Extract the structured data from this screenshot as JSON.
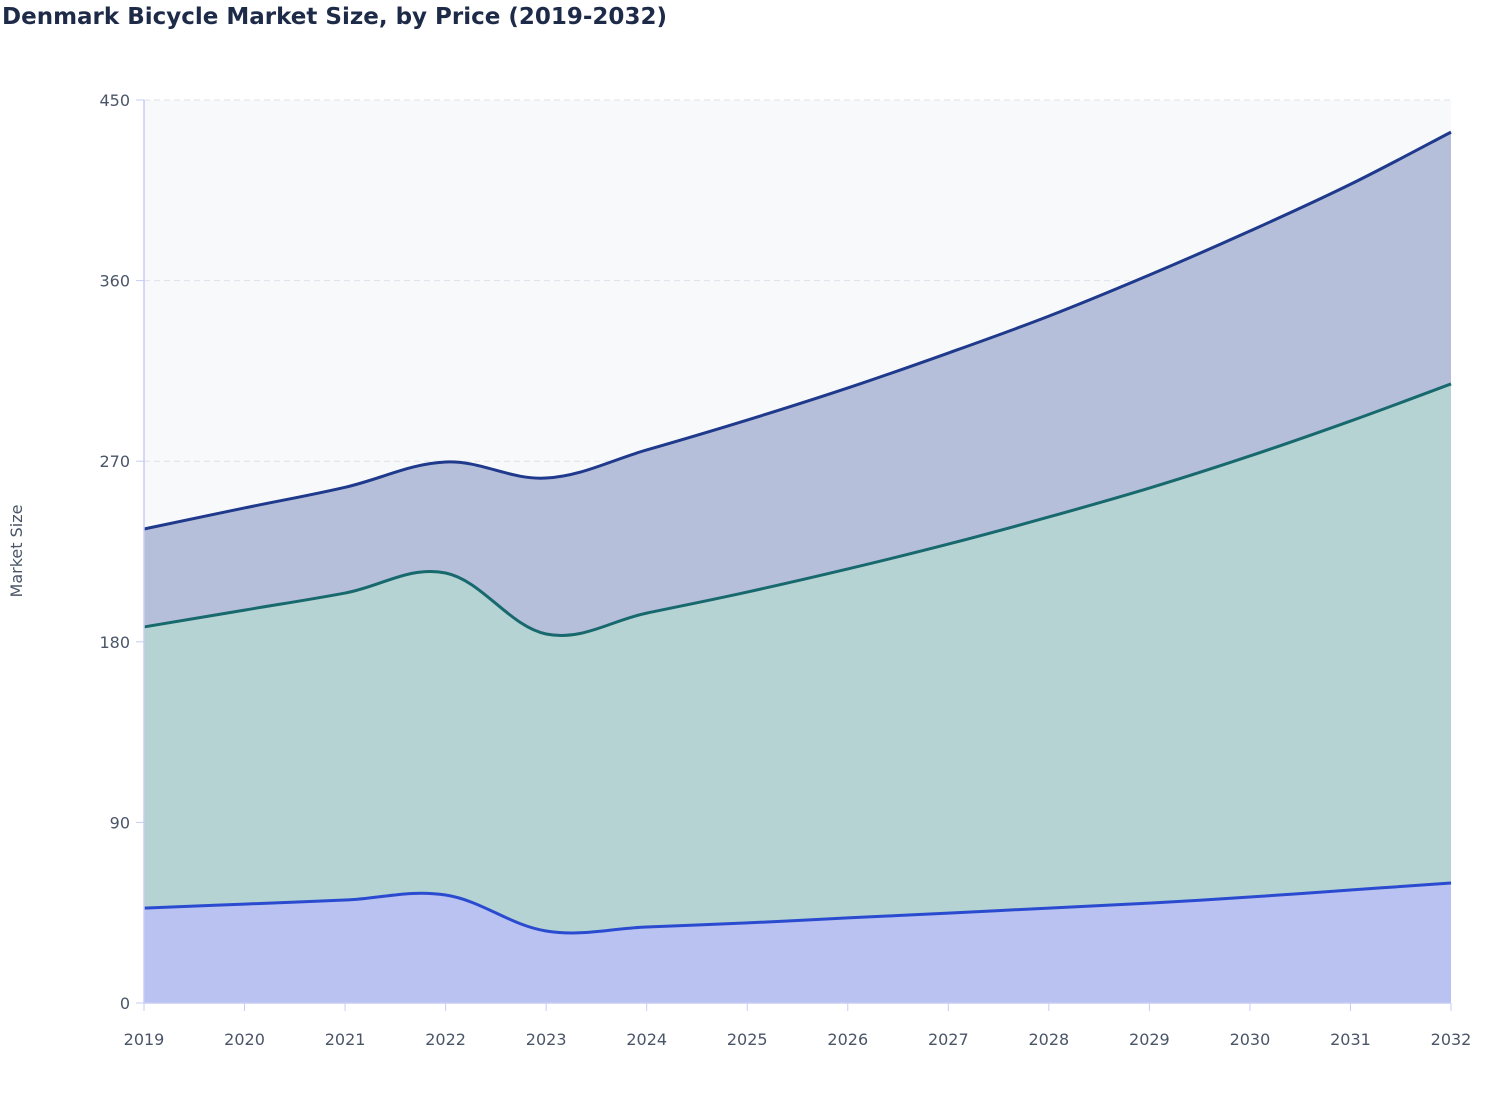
{
  "chart_data": {
    "type": "area",
    "stacked": true,
    "title": "Denmark Bicycle Market Size, by Price (2019-2032)",
    "xlabel": "",
    "ylabel": "Market Size",
    "ylim": [
      0,
      450
    ],
    "yticks": [
      0,
      90,
      180,
      270,
      360,
      450
    ],
    "grid": true,
    "x": [
      2019,
      2020,
      2021,
      2022,
      2023,
      2024,
      2025,
      2026,
      2027,
      2028,
      2029,
      2030,
      2031,
      2032
    ],
    "series": [
      {
        "values": [
          47.3,
          49.3,
          51.3,
          53.8,
          35.9,
          37.9,
          39.9,
          42.4,
          44.8,
          47.3,
          49.8,
          52.8,
          56.3,
          59.8
        ],
        "line_color": "#2a4bd0",
        "fill_color": "#bac2f2"
      },
      {
        "values": [
          140.1,
          146.5,
          153.0,
          160.5,
          148.0,
          156.4,
          164.9,
          173.9,
          183.9,
          194.9,
          206.8,
          219.8,
          233.7,
          248.7
        ],
        "line_color": "#17696e",
        "fill_color": "#b5d3d3"
      },
      {
        "values": [
          48.8,
          50.9,
          52.7,
          55.3,
          77.7,
          81.3,
          85.7,
          90.2,
          95.2,
          100.1,
          106.2,
          112.1,
          118.0,
          125.5
        ],
        "line_color": "#1f3a8c",
        "fill_color": "#b6bfd9"
      }
    ]
  }
}
